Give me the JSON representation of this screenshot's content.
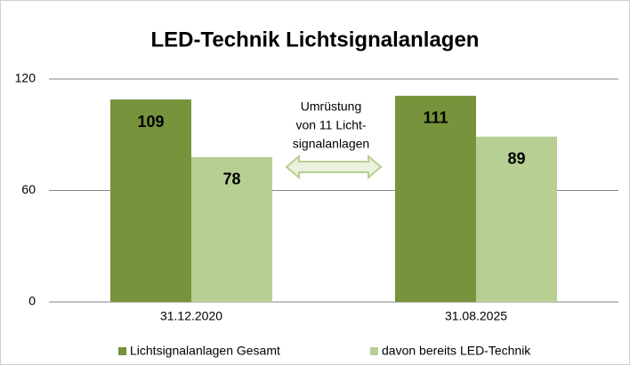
{
  "chart_data": {
    "type": "bar",
    "title": "LED-Technik Lichtsignalanlagen",
    "categories": [
      "31.12.2020",
      "31.08.2025"
    ],
    "series": [
      {
        "name": "Lichtsignalanlagen Gesamt",
        "color": "#77933c",
        "values": [
          109,
          111
        ]
      },
      {
        "name": "davon bereits LED-Technik",
        "color": "#b7cf92",
        "values": [
          78,
          89
        ]
      }
    ],
    "ylim": [
      0,
      120
    ],
    "yticks": [
      0,
      60,
      120
    ],
    "grid": true,
    "legend": "bottom",
    "annotation": [
      "Umrüstung",
      "von 11 Licht-",
      "signalanlagen"
    ]
  }
}
